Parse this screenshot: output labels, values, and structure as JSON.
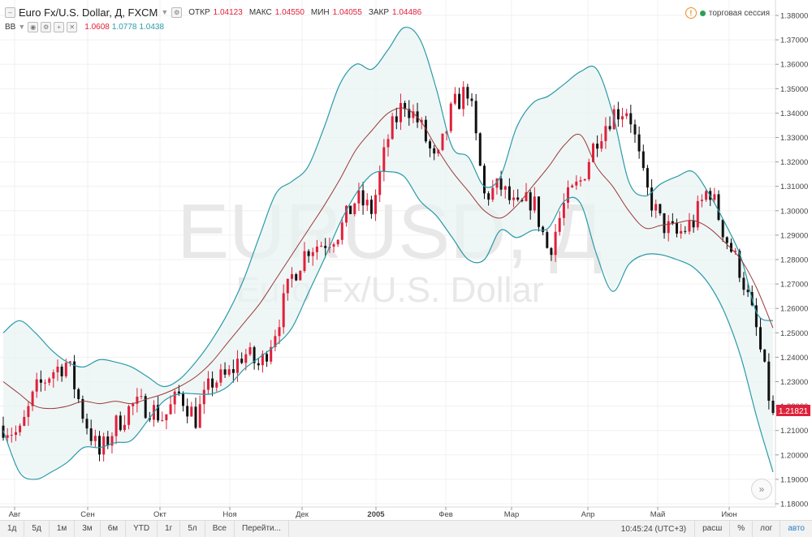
{
  "header": {
    "symbol_title": "Euro Fx/U.S. Dollar, Д, FXCM",
    "open_label": "ОТКР",
    "open_value": "1.04123",
    "high_label": "МАКС",
    "high_value": "1.04550",
    "low_label": "МИН",
    "low_value": "1.04055",
    "close_label": "ЗАКР",
    "close_value": "1.04486",
    "session_text": "торговая сессия"
  },
  "indicator": {
    "name": "BB",
    "upper": "1.0608",
    "middle": "1.0778",
    "lower": "1.0438"
  },
  "watermark": {
    "symbol": "EURUSD, Д",
    "name": "Euro Fx/U.S. Dollar"
  },
  "colors": {
    "up": "#e0203a",
    "down": "#111111",
    "band": "#2a9ba8",
    "basis": "#9b3a3a",
    "band_fill": "#e9f3f3"
  },
  "chart_data": {
    "type": "candlestick",
    "y_ticks": [
      "1.38000",
      "1.37000",
      "1.36000",
      "1.35000",
      "1.34000",
      "1.33000",
      "1.32000",
      "1.31000",
      "1.30000",
      "1.29000",
      "1.28000",
      "1.27000",
      "1.26000",
      "1.25000",
      "1.24000",
      "1.23000",
      "1.22000",
      "1.21000",
      "1.20000",
      "1.19000",
      "1.18000"
    ],
    "ylim": [
      1.178,
      1.384
    ],
    "x_labels": [
      "Авг",
      "Сен",
      "Окт",
      "Ноя",
      "Дек",
      "2005",
      "Фев",
      "Мар",
      "Апр",
      "Май",
      "Июн"
    ],
    "current_price": "1.21821",
    "series": [
      {
        "name": "BB upper",
        "values": [
          1.25,
          1.255,
          1.25,
          1.243,
          1.238,
          1.236,
          1.239,
          1.238,
          1.236,
          1.232,
          1.228,
          1.231,
          1.238,
          1.247,
          1.258,
          1.272,
          1.29,
          1.307,
          1.312,
          1.318,
          1.334,
          1.352,
          1.36,
          1.358,
          1.366,
          1.375,
          1.37,
          1.35,
          1.326,
          1.322,
          1.31,
          1.314,
          1.334,
          1.344,
          1.347,
          1.352,
          1.357,
          1.358,
          1.34,
          1.312,
          1.306,
          1.311,
          1.314,
          1.316,
          1.307,
          1.295,
          1.281,
          1.258,
          1.255
        ]
      },
      {
        "name": "BB basis",
        "values": [
          1.23,
          1.225,
          1.22,
          1.219,
          1.22,
          1.222,
          1.221,
          1.222,
          1.221,
          1.223,
          1.225,
          1.228,
          1.232,
          1.238,
          1.246,
          1.254,
          1.262,
          1.272,
          1.282,
          1.292,
          1.302,
          1.313,
          1.325,
          1.333,
          1.34,
          1.342,
          1.337,
          1.326,
          1.316,
          1.308,
          1.3,
          1.297,
          1.302,
          1.31,
          1.318,
          1.327,
          1.331,
          1.318,
          1.31,
          1.3,
          1.293,
          1.294,
          1.295,
          1.296,
          1.293,
          1.287,
          1.28,
          1.268,
          1.252
        ]
      },
      {
        "name": "BB lower",
        "values": [
          1.21,
          1.193,
          1.19,
          1.193,
          1.197,
          1.203,
          1.203,
          1.205,
          1.206,
          1.214,
          1.222,
          1.225,
          1.225,
          1.225,
          1.228,
          1.235,
          1.24,
          1.245,
          1.252,
          1.266,
          1.28,
          1.295,
          1.307,
          1.315,
          1.316,
          1.314,
          1.304,
          1.298,
          1.289,
          1.28,
          1.28,
          1.292,
          1.289,
          1.292,
          1.293,
          1.304,
          1.303,
          1.282,
          1.267,
          1.278,
          1.282,
          1.282,
          1.28,
          1.277,
          1.27,
          1.258,
          1.24,
          1.215,
          1.193
        ]
      },
      {
        "name": "close",
        "values": [
          1.212,
          1.208,
          1.226,
          1.234,
          1.238,
          1.216,
          1.2,
          1.212,
          1.22,
          1.22,
          1.215,
          1.225,
          1.215,
          1.23,
          1.232,
          1.242,
          1.236,
          1.252,
          1.273,
          1.285,
          1.287,
          1.292,
          1.305,
          1.3,
          1.33,
          1.345,
          1.335,
          1.318,
          1.342,
          1.35,
          1.306,
          1.31,
          1.3,
          1.305,
          1.283,
          1.303,
          1.312,
          1.33,
          1.34,
          1.342,
          1.31,
          1.295,
          1.29,
          1.295,
          1.31,
          1.29,
          1.275,
          1.25,
          1.215
        ]
      }
    ]
  },
  "toolbar": {
    "buttons": [
      "1д",
      "5д",
      "1м",
      "3м",
      "6м",
      "YTD",
      "1г",
      "5л",
      "Все",
      "Перейти..."
    ],
    "time": "10:45:24 (UTC+3)",
    "right_buttons": [
      "расш",
      "%",
      "лог",
      "авто"
    ]
  }
}
